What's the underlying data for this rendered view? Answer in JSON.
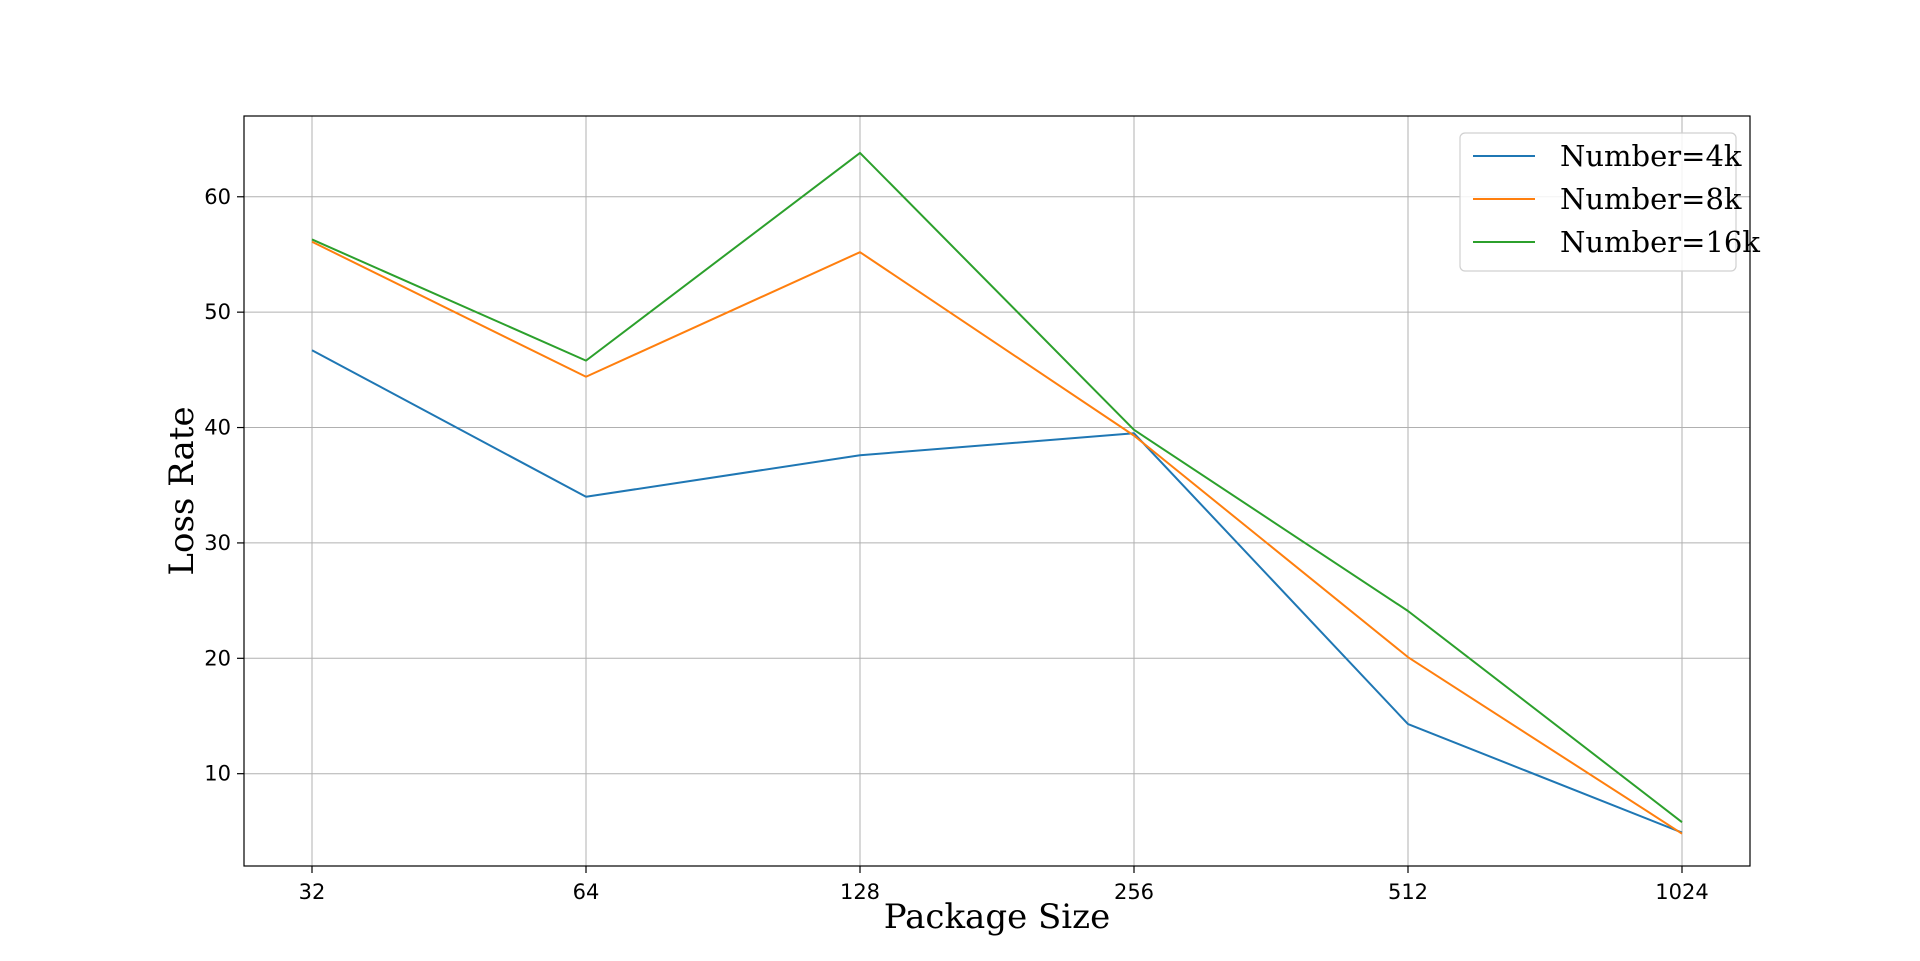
{
  "chart_data": {
    "type": "line",
    "categories": [
      "32",
      "64",
      "128",
      "256",
      "512",
      "1024"
    ],
    "xlabel": "Package Size",
    "ylabel": "Loss Rate",
    "ylim": [
      2,
      67
    ],
    "yticks": [
      10,
      20,
      30,
      40,
      50,
      60
    ],
    "grid": true,
    "legend_position": "top-right",
    "series": [
      {
        "name": "Number=4k",
        "color": "#1f77b4",
        "values": [
          46.7,
          34.0,
          37.6,
          39.5,
          14.3,
          4.9
        ]
      },
      {
        "name": "Number=8k",
        "color": "#ff7f0e",
        "values": [
          56.1,
          44.4,
          55.2,
          39.3,
          20.1,
          4.8
        ]
      },
      {
        "name": "Number=16k",
        "color": "#2ca02c",
        "values": [
          56.3,
          45.8,
          63.8,
          39.8,
          24.1,
          5.8
        ]
      }
    ]
  }
}
